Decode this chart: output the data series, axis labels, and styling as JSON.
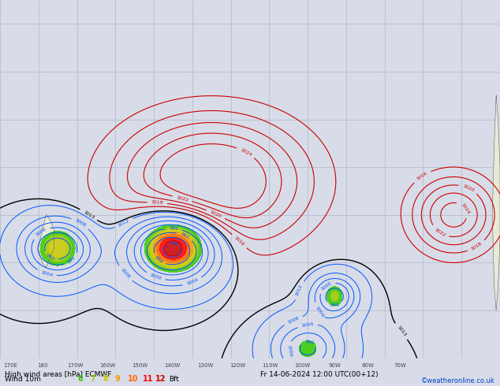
{
  "title_line1": "High wind areas [hPa] ECMWF",
  "title_line2": "Fr 14-06-2024 12:00 UTC(00+12)",
  "label_windlabel": "Wind 10m",
  "label_bft": "Bft",
  "label_copyright": "©weatheronline.co.uk",
  "bft_values": [
    "6",
    "7",
    "8",
    "9",
    "10",
    "11",
    "12"
  ],
  "bft_colors": [
    "#33cc00",
    "#99cc00",
    "#cccc00",
    "#ff9900",
    "#ff6600",
    "#ff0000",
    "#cc0000"
  ],
  "bg_color": "#d8dce8",
  "map_bg": "#d8dce8",
  "ocean_color": "#d8dce8",
  "land_color": "#e8ead8",
  "land_color2": "#c8d8b0",
  "grid_color": "#b0b8c8",
  "figsize": [
    6.34,
    4.9
  ],
  "dpi": 100,
  "bottom_bar_color": "#c8d0e0",
  "contour_blue": "#0055ff",
  "contour_red": "#cc0000",
  "contour_black": "#000000",
  "lon_min": 160,
  "lon_max": 290,
  "lat_min": -65,
  "lat_max": 10,
  "lon_ticks": [
    170,
    180,
    190,
    200,
    210,
    220,
    230,
    240,
    250,
    260,
    270,
    280,
    290
  ],
  "lon_tick_labels": [
    "170E",
    "180",
    "170W",
    "160W",
    "150W",
    "140W",
    "130W",
    "120W",
    "110W",
    "100W",
    "90W",
    "80W",
    "70W"
  ],
  "lat_ticks": [
    -60,
    -50,
    -40,
    -30,
    -20,
    -10,
    0,
    10
  ],
  "storm1_lon": 205,
  "storm1_lat": -42,
  "storm2_lon": 247,
  "storm2_lat": -52,
  "storm3_lon": 273,
  "storm3_lat": -50
}
